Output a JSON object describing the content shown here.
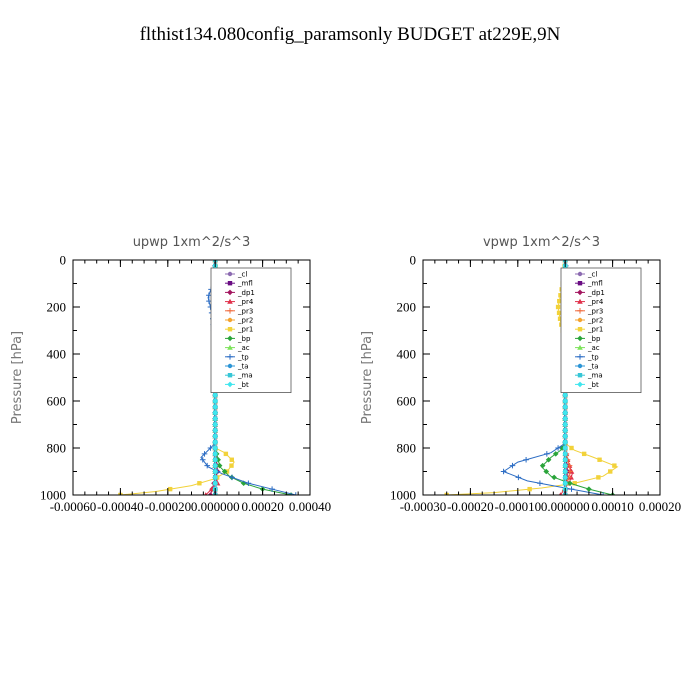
{
  "figure_title": "flthist134.080config_paramsonly  BUDGET at229E,9N",
  "chart_data": [
    {
      "type": "line",
      "title": "upwp   1xm^2/s^3",
      "ylabel": "Pressure [hPa]",
      "xlabel": "",
      "xlim": [
        -0.0006,
        0.0004
      ],
      "ylim": [
        1000,
        0
      ],
      "x_ticks": [
        -0.0006,
        -0.0004,
        -0.0002,
        0.0,
        0.0002,
        0.0004
      ],
      "x_tick_labels": [
        "-0.00060",
        "-0.00040",
        "-0.00020",
        "0.000000",
        "0.00020",
        "0.00040"
      ],
      "y_ticks": [
        0,
        200,
        400,
        600,
        800,
        1000
      ],
      "y_tick_labels": [
        "0",
        "200",
        "400",
        "600",
        "800",
        "1000"
      ],
      "legend_position": "top-right",
      "grid": false,
      "series": [
        {
          "name": "_cl",
          "color": "#8c6bb1",
          "x": [
            0,
            0,
            0,
            0,
            0,
            0,
            0,
            0,
            0,
            0,
            0
          ],
          "y": [
            0,
            100,
            200,
            300,
            400,
            500,
            600,
            700,
            800,
            900,
            1000
          ]
        },
        {
          "name": "_mfl",
          "color": "#6a0d83",
          "x": [
            0,
            0,
            0,
            0,
            0,
            0,
            0,
            0,
            0,
            0,
            0
          ],
          "y": [
            0,
            100,
            200,
            300,
            400,
            500,
            600,
            700,
            800,
            900,
            1000
          ]
        },
        {
          "name": "_dp1",
          "color": "#a3155f",
          "x": [
            0,
            0,
            0,
            0,
            0,
            0,
            0,
            0,
            0,
            1e-05,
            -2e-05
          ],
          "y": [
            0,
            100,
            200,
            300,
            400,
            500,
            600,
            700,
            800,
            900,
            1000
          ]
        },
        {
          "name": "_pr4",
          "color": "#e0304a",
          "x": [
            0,
            0,
            0,
            0,
            0,
            0,
            0,
            0,
            0,
            0,
            1e-05,
            -4e-05
          ],
          "y": [
            0,
            100,
            200,
            300,
            400,
            500,
            600,
            700,
            800,
            900,
            950,
            1000
          ]
        },
        {
          "name": "_pr3",
          "color": "#f06a3c",
          "x": [
            0,
            0,
            0,
            0,
            0,
            0,
            0,
            0,
            0,
            0,
            0
          ],
          "y": [
            0,
            100,
            200,
            300,
            400,
            500,
            600,
            700,
            800,
            900,
            1000
          ]
        },
        {
          "name": "_pr2",
          "color": "#f4a32e",
          "x": [
            0,
            0,
            0,
            0,
            0,
            0,
            0,
            0,
            0,
            0,
            0
          ],
          "y": [
            0,
            100,
            200,
            300,
            400,
            500,
            600,
            700,
            800,
            900,
            1000
          ]
        },
        {
          "name": "_pr1",
          "color": "#f2d23a",
          "x": [
            0,
            5e-06,
            2e-05,
            3e-05,
            2e-05,
            5e-06,
            0,
            0,
            0,
            4e-05,
            8e-05,
            5e-05,
            0,
            -0.0001,
            -0.00025,
            -0.0004
          ],
          "y": [
            0,
            100,
            130,
            160,
            190,
            230,
            300,
            500,
            800,
            820,
            860,
            900,
            930,
            960,
            985,
            1000
          ]
        },
        {
          "name": "_bp",
          "color": "#2aa43a",
          "x": [
            0,
            0,
            0,
            0,
            0,
            2e-05,
            6e-05,
            0.00012,
            0.0002,
            0.00032
          ],
          "y": [
            0,
            200,
            400,
            600,
            800,
            880,
            920,
            950,
            975,
            1000
          ]
        },
        {
          "name": "_ac",
          "color": "#7de35a",
          "x": [
            0,
            0,
            0,
            0,
            0,
            0,
            0,
            0,
            0,
            0,
            0
          ],
          "y": [
            0,
            100,
            200,
            300,
            400,
            500,
            600,
            700,
            800,
            900,
            1000
          ]
        },
        {
          "name": "_tp",
          "color": "#2b6cc4",
          "x": [
            0,
            -5e-06,
            -2e-05,
            -3e-05,
            -2e-05,
            -1e-05,
            -5e-06,
            0,
            0,
            -3e-05,
            -6e-05,
            -3e-05,
            3e-05,
            0.00014,
            0.00026,
            0.00034
          ],
          "y": [
            0,
            100,
            130,
            160,
            200,
            250,
            320,
            400,
            780,
            810,
            840,
            880,
            910,
            950,
            980,
            1000
          ]
        },
        {
          "name": "_ta",
          "color": "#2c95d6",
          "x": [
            0,
            0,
            0,
            0,
            0,
            0,
            0,
            0,
            0,
            0,
            0
          ],
          "y": [
            0,
            100,
            200,
            300,
            400,
            500,
            600,
            700,
            800,
            900,
            1000
          ]
        },
        {
          "name": "_ma",
          "color": "#36c6d6",
          "x": [
            0,
            0,
            0,
            0,
            0,
            0,
            0,
            0,
            0,
            0,
            0
          ],
          "y": [
            0,
            100,
            200,
            300,
            400,
            500,
            600,
            700,
            800,
            900,
            1000
          ]
        },
        {
          "name": "_bt",
          "color": "#3fe6ee",
          "x": [
            0,
            0,
            0,
            0,
            0,
            0,
            0,
            0,
            0,
            0,
            0
          ],
          "y": [
            0,
            100,
            200,
            300,
            400,
            500,
            600,
            700,
            800,
            900,
            1000
          ]
        }
      ]
    },
    {
      "type": "line",
      "title": "vpwp   1xm^2/s^3",
      "ylabel": "Pressure [hPa]",
      "xlabel": "",
      "xlim": [
        -0.0003,
        0.0002
      ],
      "ylim": [
        1000,
        0
      ],
      "x_ticks": [
        -0.0003,
        -0.0002,
        -0.0001,
        0.0,
        0.0001,
        0.0002
      ],
      "x_tick_labels": [
        "-0.00030",
        "-0.00020",
        "-0.00010",
        "0.000000",
        "0.00010",
        "0.00020"
      ],
      "y_ticks": [
        0,
        200,
        400,
        600,
        800,
        1000
      ],
      "y_tick_labels": [
        "0",
        "200",
        "400",
        "600",
        "800",
        "1000"
      ],
      "legend_position": "top-right",
      "grid": false,
      "series": [
        {
          "name": "_cl",
          "color": "#8c6bb1",
          "x": [
            0,
            0,
            0,
            0,
            0,
            0,
            0,
            0,
            0,
            0,
            0
          ],
          "y": [
            0,
            100,
            200,
            300,
            400,
            500,
            600,
            700,
            800,
            900,
            1000
          ]
        },
        {
          "name": "_mfl",
          "color": "#6a0d83",
          "x": [
            0,
            0,
            0,
            0,
            0,
            0,
            0,
            0,
            0,
            0,
            0
          ],
          "y": [
            0,
            100,
            200,
            300,
            400,
            500,
            600,
            700,
            800,
            900,
            1000
          ]
        },
        {
          "name": "_dp1",
          "color": "#a3155f",
          "x": [
            0,
            0,
            0,
            0,
            0,
            0,
            0,
            0,
            0,
            5e-06,
            0
          ],
          "y": [
            0,
            100,
            200,
            300,
            400,
            500,
            600,
            700,
            800,
            900,
            1000
          ]
        },
        {
          "name": "_pr4",
          "color": "#e0304a",
          "x": [
            0,
            0,
            0,
            0,
            0,
            5e-06,
            1e-05,
            1.5e-05,
            1e-05,
            0,
            -1e-05
          ],
          "y": [
            0,
            200,
            400,
            600,
            800,
            850,
            880,
            910,
            940,
            970,
            1000
          ]
        },
        {
          "name": "_pr3",
          "color": "#f06a3c",
          "x": [
            0,
            0,
            0,
            0,
            0,
            5e-06,
            1e-05,
            1e-05,
            5e-06,
            0,
            0
          ],
          "y": [
            0,
            200,
            400,
            600,
            800,
            850,
            880,
            910,
            940,
            970,
            1000
          ]
        },
        {
          "name": "_pr2",
          "color": "#f4a32e",
          "x": [
            0,
            0,
            0,
            0,
            0,
            0,
            0,
            0,
            0,
            0,
            0
          ],
          "y": [
            0,
            100,
            200,
            300,
            400,
            500,
            600,
            700,
            800,
            900,
            1000
          ]
        },
        {
          "name": "_pr1",
          "color": "#f2d23a",
          "x": [
            0,
            -5e-06,
            -1e-05,
            -1.5e-05,
            -1e-05,
            -5e-06,
            0,
            0,
            2e-05,
            6e-05,
            0.00011,
            8e-05,
            2e-05,
            -5e-05,
            -0.00015,
            -0.00025
          ],
          "y": [
            0,
            100,
            150,
            200,
            260,
            300,
            350,
            780,
            810,
            840,
            880,
            920,
            950,
            970,
            990,
            1000
          ]
        },
        {
          "name": "_bp",
          "color": "#2aa43a",
          "x": [
            0,
            0,
            0,
            0,
            -1e-05,
            -3e-05,
            -5e-05,
            -3e-05,
            1e-05,
            5e-05,
            0.0001
          ],
          "y": [
            0,
            400,
            600,
            780,
            810,
            840,
            880,
            920,
            950,
            975,
            1000
          ]
        },
        {
          "name": "_ac",
          "color": "#7de35a",
          "x": [
            0,
            0,
            0,
            0,
            0,
            0,
            0,
            0,
            0,
            0,
            0
          ],
          "y": [
            0,
            100,
            200,
            300,
            400,
            500,
            600,
            700,
            800,
            900,
            1000
          ]
        },
        {
          "name": "_tp",
          "color": "#2b6cc4",
          "x": [
            0,
            5e-06,
            1.5e-05,
            8e-06,
            0,
            0,
            -3e-05,
            -0.0001,
            -0.00013,
            -8e-05,
            0,
            8e-05
          ],
          "y": [
            0,
            100,
            200,
            280,
            350,
            780,
            820,
            860,
            900,
            940,
            970,
            1000
          ]
        },
        {
          "name": "_ta",
          "color": "#2c95d6",
          "x": [
            0,
            0,
            0,
            0,
            0,
            0,
            0,
            0,
            0,
            0,
            0
          ],
          "y": [
            0,
            100,
            200,
            300,
            400,
            500,
            600,
            700,
            800,
            900,
            1000
          ]
        },
        {
          "name": "_ma",
          "color": "#36c6d6",
          "x": [
            0,
            0,
            0,
            0,
            0,
            0,
            0,
            0,
            0,
            0,
            0
          ],
          "y": [
            0,
            100,
            200,
            300,
            400,
            500,
            600,
            700,
            800,
            900,
            1000
          ]
        },
        {
          "name": "_bt",
          "color": "#3fe6ee",
          "x": [
            0,
            0,
            0,
            0,
            0,
            0,
            0,
            0,
            0,
            0,
            0
          ],
          "y": [
            0,
            100,
            200,
            300,
            400,
            500,
            600,
            700,
            800,
            900,
            1000
          ]
        }
      ]
    }
  ]
}
